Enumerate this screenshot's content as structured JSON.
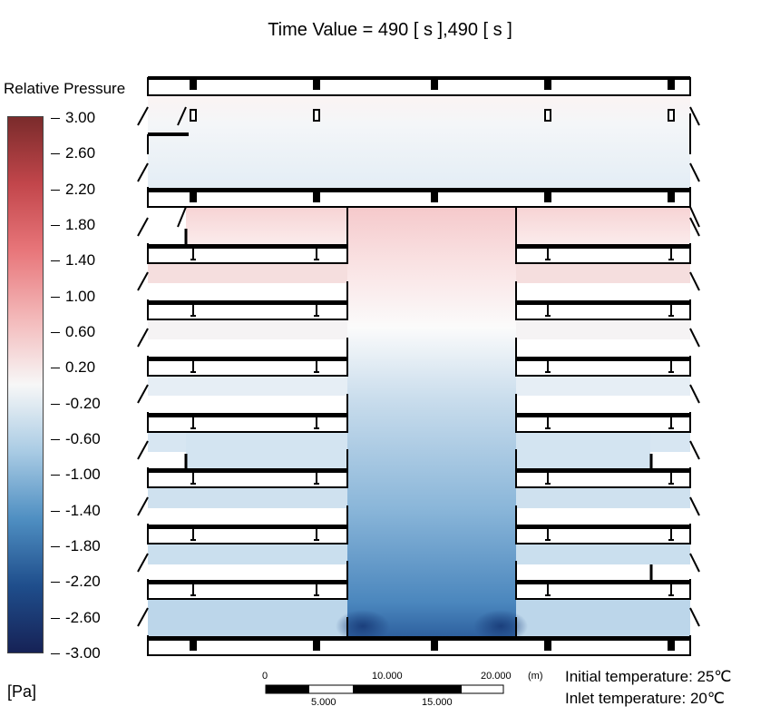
{
  "header": {
    "title": "Time Value = 490 [ s ],490 [ s ]"
  },
  "legend": {
    "title": "Relative Pressure",
    "labels": [
      "3.00",
      "2.60",
      "2.20",
      "1.80",
      "1.40",
      "1.00",
      "0.60",
      "0.20",
      "-0.20",
      "-0.60",
      "-1.00",
      "-1.40",
      "-1.80",
      "-2.20",
      "-2.60",
      "-3.00"
    ],
    "unit": "[Pa]",
    "colors": [
      "#7a2b2b",
      "#c2464b",
      "#e8767a",
      "#f3b8b9",
      "#f7f7f7",
      "#a9cbe4",
      "#4f8fc2",
      "#1f4e8c",
      "#162256"
    ]
  },
  "scalebar": {
    "top_labels": [
      "0",
      "10.000",
      "20.000",
      "(m)"
    ],
    "bottom_labels": [
      "5.000",
      "15.000"
    ]
  },
  "notes": {
    "initial": "Initial temperature: 25℃",
    "inlet": "Inlet temperature: 20℃"
  }
}
